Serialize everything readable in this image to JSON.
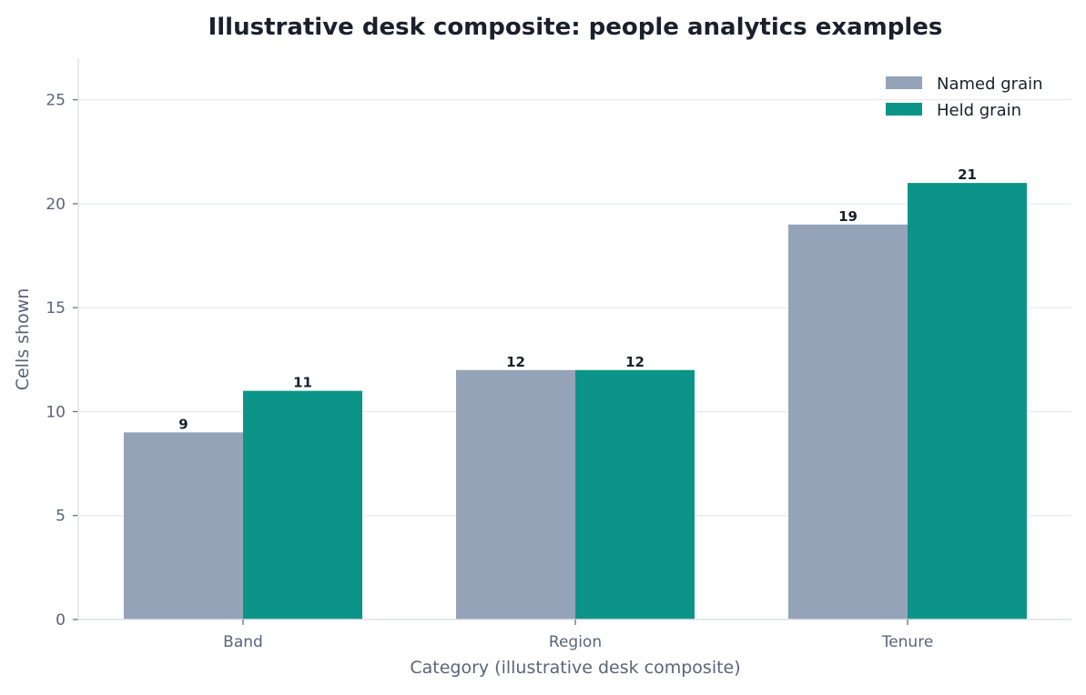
{
  "chart_data": {
    "type": "bar",
    "title": "Illustrative desk composite: people analytics examples",
    "xlabel": "Category (illustrative desk composite)",
    "ylabel": "Cells shown",
    "categories": [
      "Band",
      "Region",
      "Tenure"
    ],
    "series": [
      {
        "name": "Named grain",
        "values": [
          9,
          12,
          19
        ],
        "color": "#94a3b8"
      },
      {
        "name": "Held grain",
        "values": [
          11,
          12,
          21
        ],
        "color": "#0d9488"
      }
    ],
    "ylim": [
      0,
      27
    ],
    "yticks": [
      0,
      5,
      10,
      15,
      20,
      25
    ],
    "grid": "horizontal",
    "legend_position": "top-right"
  }
}
